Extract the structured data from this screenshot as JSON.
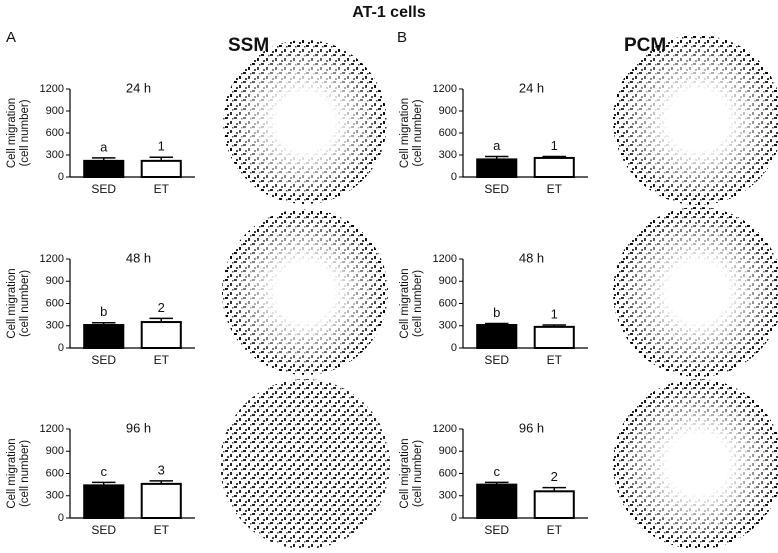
{
  "figure": {
    "title": "AT-1 cells",
    "panels": [
      {
        "label": "A",
        "title": "SSM"
      },
      {
        "label": "B",
        "title": "PCM"
      }
    ]
  },
  "chart_data": [
    {
      "type": "bar",
      "title": "24 h",
      "ylabel": [
        "Cell migration",
        "(cell number)"
      ],
      "categories": [
        "SED",
        "ET"
      ],
      "values": [
        220,
        220
      ],
      "errors": [
        40,
        50
      ],
      "annotations": [
        "a",
        "1"
      ],
      "colors": [
        "#000000",
        "#ffffff"
      ],
      "ylim": [
        0,
        1200
      ],
      "yticks": [
        0,
        300,
        600,
        900,
        1200
      ]
    },
    {
      "type": "bar",
      "title": "48 h",
      "ylabel": [
        "Cell migration",
        "(cell number)"
      ],
      "categories": [
        "SED",
        "ET"
      ],
      "values": [
        310,
        350
      ],
      "errors": [
        30,
        50
      ],
      "annotations": [
        "b",
        "2"
      ],
      "colors": [
        "#000000",
        "#ffffff"
      ],
      "ylim": [
        0,
        1200
      ],
      "yticks": [
        0,
        300,
        600,
        900,
        1200
      ]
    },
    {
      "type": "bar",
      "title": "96 h",
      "ylabel": [
        "Cell migration",
        "(cell number)"
      ],
      "categories": [
        "SED",
        "ET"
      ],
      "values": [
        440,
        460
      ],
      "errors": [
        40,
        40
      ],
      "annotations": [
        "c",
        "3"
      ],
      "colors": [
        "#000000",
        "#ffffff"
      ],
      "ylim": [
        0,
        1200
      ],
      "yticks": [
        0,
        300,
        600,
        900,
        1200
      ]
    },
    {
      "type": "bar",
      "title": "24 h",
      "ylabel": [
        "Cell migration",
        "(cell number)"
      ],
      "categories": [
        "SED",
        "ET"
      ],
      "values": [
        240,
        260
      ],
      "errors": [
        40,
        20
      ],
      "annotations": [
        "a",
        "1"
      ],
      "colors": [
        "#000000",
        "#ffffff"
      ],
      "ylim": [
        0,
        1200
      ],
      "yticks": [
        0,
        300,
        600,
        900,
        1200
      ]
    },
    {
      "type": "bar",
      "title": "48 h",
      "ylabel": [
        "Cell migration",
        "(cell number)"
      ],
      "categories": [
        "SED",
        "ET"
      ],
      "values": [
        310,
        285
      ],
      "errors": [
        20,
        25
      ],
      "annotations": [
        "b",
        "1"
      ],
      "colors": [
        "#000000",
        "#ffffff"
      ],
      "ylim": [
        0,
        1200
      ],
      "yticks": [
        0,
        300,
        600,
        900,
        1200
      ]
    },
    {
      "type": "bar",
      "title": "96 h",
      "ylabel": [
        "Cell migration",
        "(cell number)"
      ],
      "categories": [
        "SED",
        "ET"
      ],
      "values": [
        450,
        360
      ],
      "errors": [
        30,
        50
      ],
      "annotations": [
        "c",
        "2"
      ],
      "colors": [
        "#000000",
        "#ffffff"
      ],
      "ylim": [
        0,
        1200
      ],
      "yticks": [
        0,
        300,
        600,
        900,
        1200
      ]
    }
  ]
}
